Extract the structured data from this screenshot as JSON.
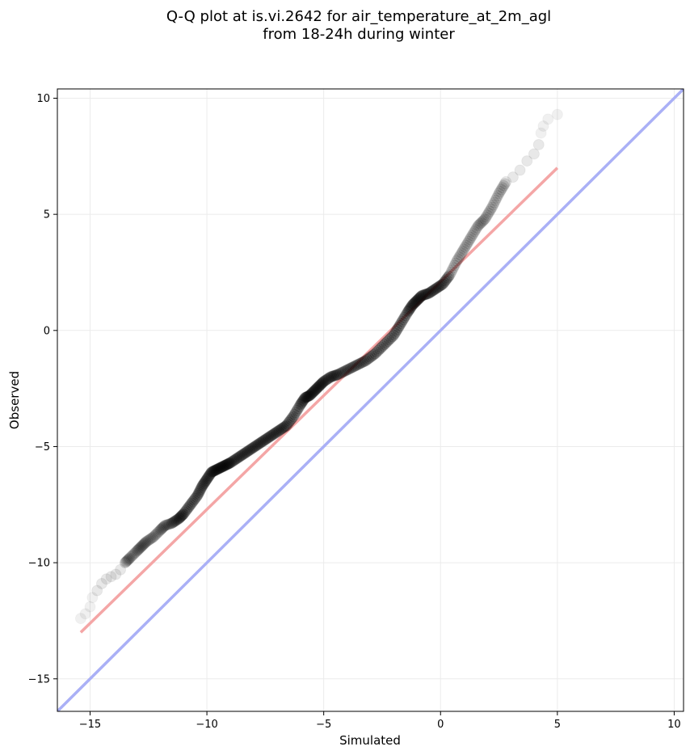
{
  "chart_data": {
    "type": "scatter",
    "title": "Q-Q plot at is.vi.2642 for air_temperature_at_2m_agl",
    "subtitle": "from 18-24h during winter",
    "xlabel": "Simulated",
    "ylabel": "Observed",
    "xlim": [
      -16.4,
      10.4
    ],
    "ylim": [
      -16.4,
      10.4
    ],
    "x_ticks": [
      -15,
      -10,
      -5,
      0,
      5,
      10
    ],
    "y_ticks": [
      -15,
      -10,
      -5,
      0,
      5,
      10
    ],
    "x_tick_labels": [
      "−15",
      "−10",
      "−5",
      "0",
      "5",
      "10"
    ],
    "y_tick_labels": [
      "−15",
      "−10",
      "−5",
      "0",
      "5",
      "10"
    ],
    "grid": true,
    "quantile_points": {
      "x": [
        -15.4,
        -15.2,
        -15.0,
        -14.9,
        -14.7,
        -14.5,
        -14.3,
        -14.1,
        -13.9,
        -13.7,
        -13.5,
        -13.3,
        -13.0,
        -12.8,
        -12.6,
        -12.3,
        -12.0,
        -11.8,
        -11.5,
        -11.2,
        -11.0,
        -10.7,
        -10.4,
        -10.2,
        -10.0,
        -9.8,
        -9.6,
        -9.4,
        -9.2,
        -9.0,
        -8.7,
        -8.4,
        -8.1,
        -7.8,
        -7.5,
        -7.2,
        -6.9,
        -6.6,
        -6.3,
        -6.0,
        -5.8,
        -5.6,
        -5.4,
        -5.2,
        -5.0,
        -4.7,
        -4.4,
        -4.0,
        -3.6,
        -3.2,
        -2.8,
        -2.4,
        -2.0,
        -1.7,
        -1.4,
        -1.2,
        -1.0,
        -0.8,
        -0.5,
        -0.2,
        0.1,
        0.4,
        0.7,
        1.0,
        1.3,
        1.6,
        1.9,
        2.2,
        2.5,
        2.8,
        3.1,
        3.4,
        3.7,
        4.0,
        4.2,
        4.3,
        4.4,
        4.6,
        5.0
      ],
      "y": [
        -12.4,
        -12.2,
        -11.9,
        -11.5,
        -11.2,
        -10.9,
        -10.7,
        -10.6,
        -10.5,
        -10.3,
        -10.0,
        -9.8,
        -9.5,
        -9.3,
        -9.1,
        -8.9,
        -8.6,
        -8.4,
        -8.3,
        -8.1,
        -7.9,
        -7.5,
        -7.1,
        -6.7,
        -6.4,
        -6.1,
        -6.0,
        -5.9,
        -5.8,
        -5.7,
        -5.5,
        -5.3,
        -5.1,
        -4.9,
        -4.7,
        -4.5,
        -4.3,
        -4.1,
        -3.7,
        -3.2,
        -2.9,
        -2.8,
        -2.6,
        -2.4,
        -2.2,
        -2.0,
        -1.9,
        -1.7,
        -1.5,
        -1.3,
        -1.0,
        -0.6,
        -0.2,
        0.3,
        0.8,
        1.1,
        1.3,
        1.5,
        1.6,
        1.8,
        2.0,
        2.4,
        3.0,
        3.5,
        4.0,
        4.5,
        4.8,
        5.3,
        5.9,
        6.4,
        6.6,
        6.9,
        7.3,
        7.6,
        8.0,
        8.5,
        8.8,
        9.1,
        9.3
      ]
    },
    "fit_line": {
      "x": [
        -15.4,
        5.0
      ],
      "y": [
        -13.0,
        7.0
      ],
      "color": "#f4a6a6"
    },
    "identity_line": {
      "color": "#aab0f6"
    },
    "point_color": "#000000"
  }
}
